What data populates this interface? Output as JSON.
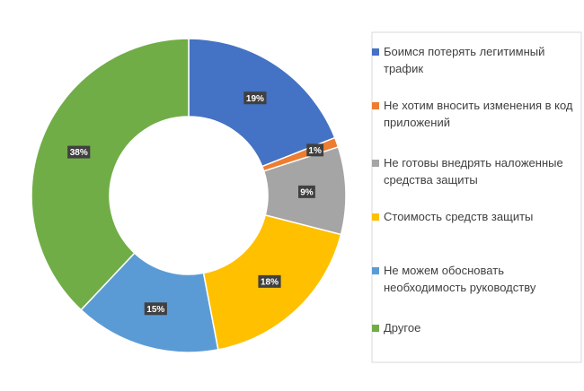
{
  "chart_data": {
    "type": "pie",
    "donut": true,
    "categories": [
      "Боимся потерять легитимный трафик",
      "Не хотим вносить изменения в код приложений",
      "Не готовы внедрять наложенные средства защиты",
      "Стоимость средств защиты",
      "Не можем обосновать необходимость руководству",
      "Другое"
    ],
    "values": [
      19,
      1,
      9,
      18,
      15,
      38
    ],
    "data_labels": [
      "19%",
      "1%",
      "9%",
      "18%",
      "15%",
      "38%"
    ],
    "colors": [
      "#4472C4",
      "#ED7D31",
      "#A5A5A5",
      "#FFC000",
      "#5B9BD5",
      "#70AD47"
    ],
    "legend_position": "right",
    "title": ""
  }
}
